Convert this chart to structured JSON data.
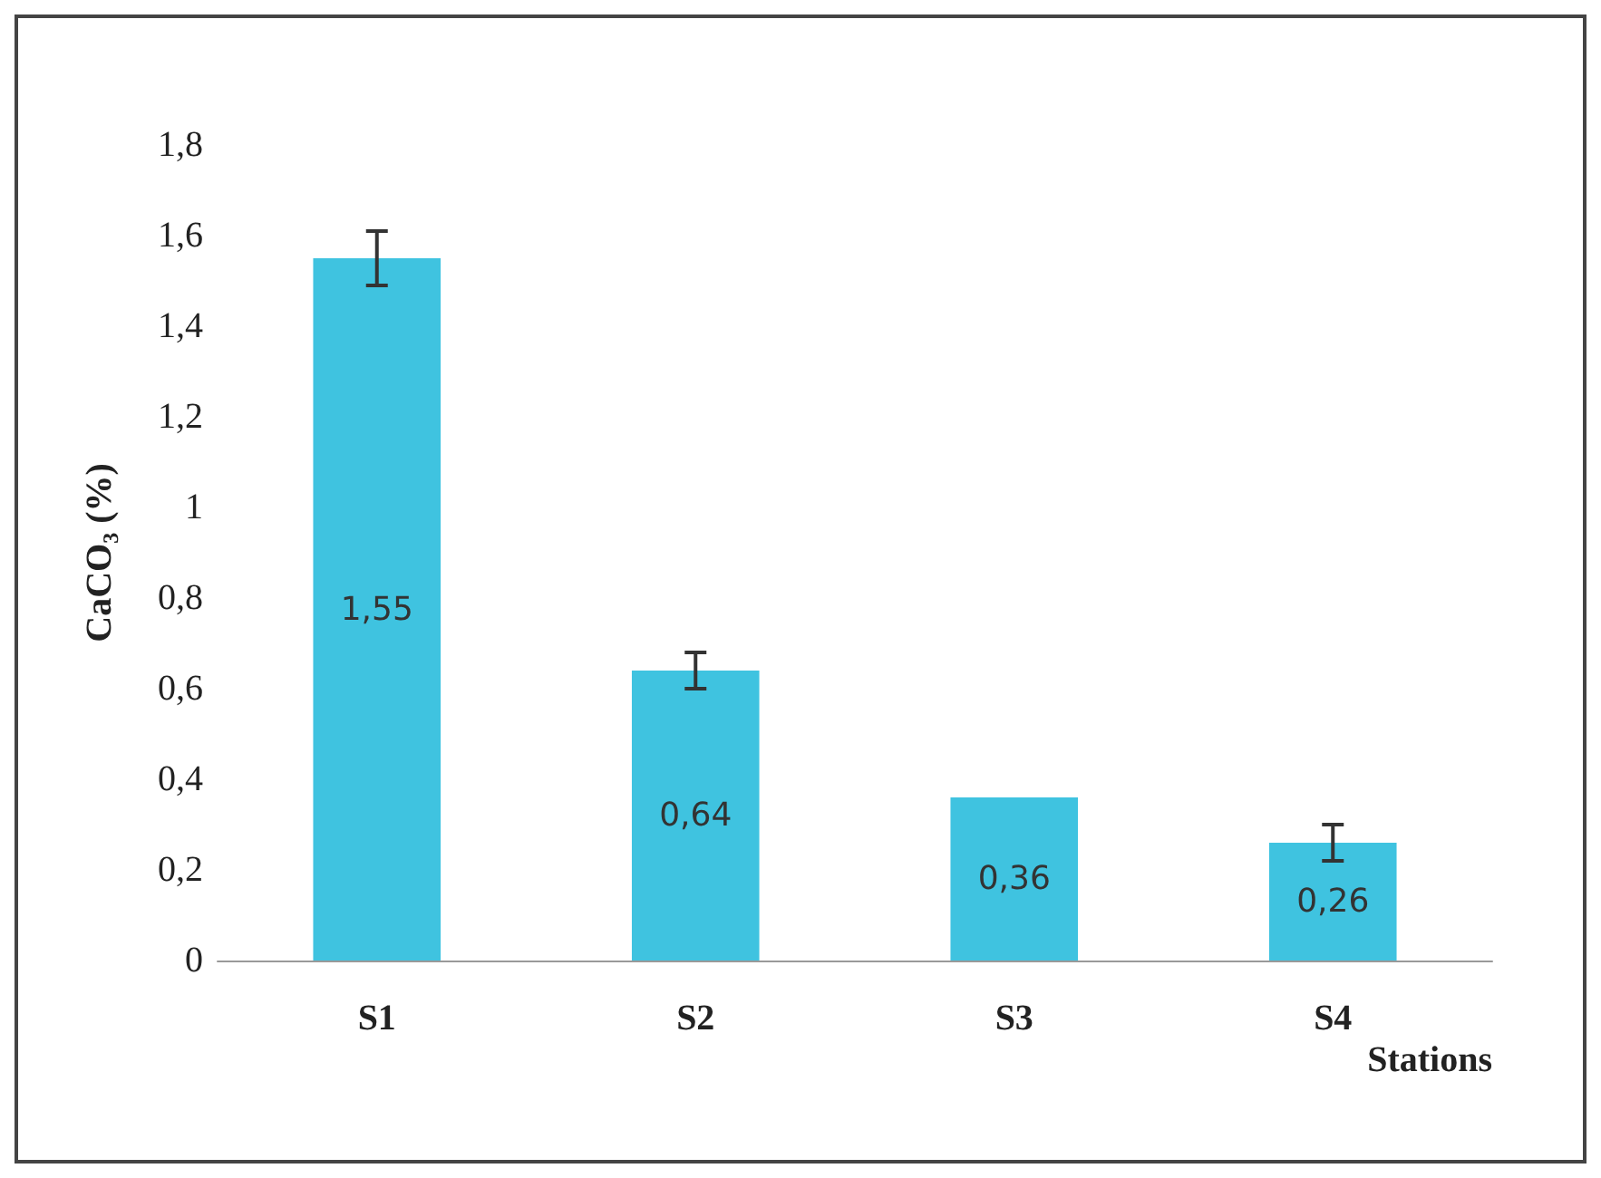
{
  "chart_data": {
    "type": "bar",
    "xlabel": "Stations",
    "ylabel": "CaCO₃ (%)",
    "categories": [
      "S1",
      "S2",
      "S3",
      "S4"
    ],
    "values": [
      1.55,
      0.64,
      0.36,
      0.26
    ],
    "errors": [
      0.06,
      0.04,
      null,
      0.04
    ],
    "value_labels": [
      "1,55",
      "0,64",
      "0,36",
      "0,26"
    ],
    "color": "#3fc3e0",
    "ylim": [
      0,
      1.8
    ],
    "yticks": [
      0,
      {
        "value": 0.2,
        "label": "0,2"
      },
      {
        "value": 0.4,
        "label": "0,4"
      },
      {
        "value": 0.6,
        "label": "0,6"
      },
      {
        "value": 0.8,
        "label": "0,8"
      },
      1,
      {
        "value": 1.2,
        "label": "1,2"
      },
      {
        "value": 1.4,
        "label": "1,4"
      },
      {
        "value": 1.6,
        "label": "1,6"
      },
      {
        "value": 1.8,
        "label": "1,8"
      }
    ],
    "grid": false
  }
}
